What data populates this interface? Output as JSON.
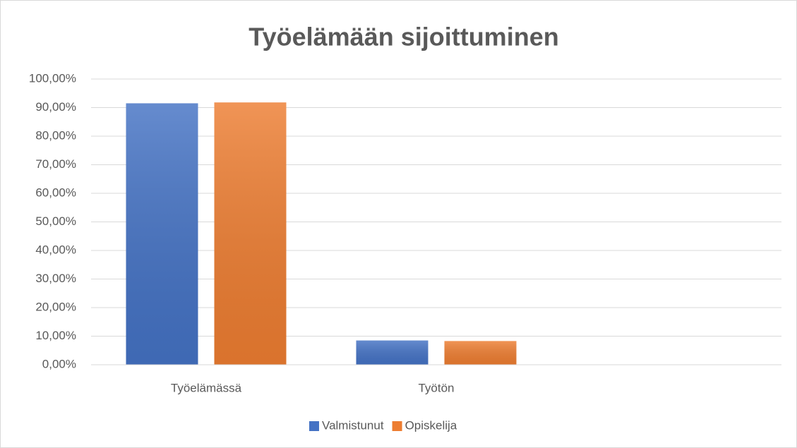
{
  "chart_data": {
    "type": "bar",
    "title": "Työelämään sijoittuminen",
    "categories": [
      "Työelämässä",
      "Työtön",
      null
    ],
    "series": [
      {
        "name": "Valmistunut",
        "color": "#4472c4",
        "values": [
          91.5,
          8.5,
          null
        ]
      },
      {
        "name": "Opiskelija",
        "color": "#ed7d31",
        "values": [
          91.8,
          8.3,
          null
        ]
      }
    ],
    "ylim": [
      0,
      100
    ],
    "yticks": [
      {
        "value": 0,
        "label": "0,00%"
      },
      {
        "value": 10,
        "label": "10,00%"
      },
      {
        "value": 20,
        "label": "20,00%"
      },
      {
        "value": 30,
        "label": "30,00%"
      },
      {
        "value": 40,
        "label": "40,00%"
      },
      {
        "value": 50,
        "label": "50,00%"
      },
      {
        "value": 60,
        "label": "60,00%"
      },
      {
        "value": 70,
        "label": "70,00%"
      },
      {
        "value": 80,
        "label": "80,00%"
      },
      {
        "value": 90,
        "label": "90,00%"
      },
      {
        "value": 100,
        "label": "100,00%"
      }
    ],
    "grid": true,
    "legend": "bottom"
  }
}
